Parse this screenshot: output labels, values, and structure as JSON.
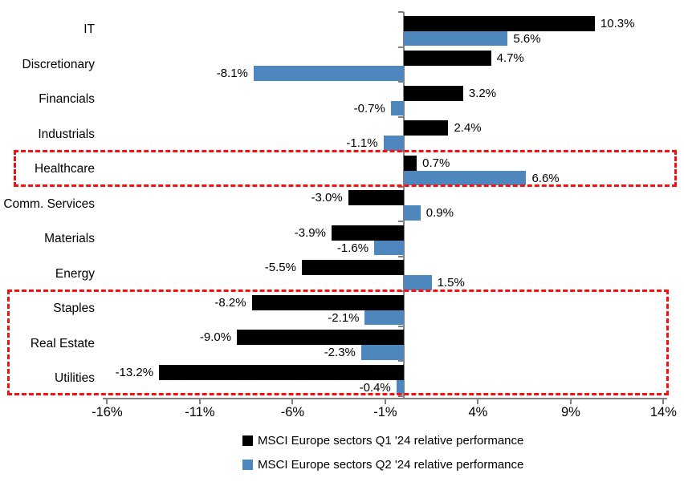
{
  "chart_data": {
    "type": "bar",
    "orientation": "horizontal",
    "title": "",
    "categories": [
      "IT",
      "Discretionary",
      "Financials",
      "Industrials",
      "Healthcare",
      "Comm. Services",
      "Materials",
      "Energy",
      "Staples",
      "Real Estate",
      "Utilities"
    ],
    "series": [
      {
        "name": "MSCI Europe sectors Q1 '24 relative performance",
        "color": "#000000",
        "values": [
          10.3,
          4.7,
          3.2,
          2.4,
          0.7,
          -3.0,
          -3.9,
          -5.5,
          -8.2,
          -9.0,
          -13.2
        ],
        "labels": [
          "10.3%",
          "4.7%",
          "3.2%",
          "2.4%",
          "0.7%",
          "-3.0%",
          "-3.9%",
          "-5.5%",
          "-8.2%",
          "-9.0%",
          "-13.2%"
        ]
      },
      {
        "name": "MSCI Europe sectors Q2 '24 relative performance",
        "color": "#4e86be",
        "values": [
          5.6,
          -8.1,
          -0.7,
          -1.1,
          6.6,
          0.9,
          -1.6,
          1.5,
          -2.1,
          -2.3,
          -0.4
        ],
        "labels": [
          "5.6%",
          "-8.1%",
          "-0.7%",
          "-1.1%",
          "6.6%",
          "0.9%",
          "-1.6%",
          "1.5%",
          "-2.1%",
          "-2.3%",
          "-0.4%"
        ]
      }
    ],
    "x_axis": {
      "min": -16,
      "max": 14,
      "tick_values": [
        -16,
        -11,
        -6,
        -1,
        4,
        9,
        14
      ],
      "tick_labels": [
        "-16%",
        "-11%",
        "-6%",
        "-1%",
        "4%",
        "9%",
        "14%"
      ]
    },
    "grid": "off",
    "axis_color": "#818181",
    "highlight_color": "#fb0d0d",
    "annotations": [
      {
        "type": "dashed-box",
        "name": "healthcare-highlight",
        "categories": [
          "Healthcare"
        ]
      },
      {
        "type": "dashed-box",
        "name": "staples-realestate-utilities-highlight",
        "categories": [
          "Staples",
          "Real Estate",
          "Utilities"
        ]
      }
    ],
    "legend": {
      "position": "bottom",
      "entries": [
        {
          "label": "MSCI Europe sectors Q1 '24 relative performance",
          "color": "#000000"
        },
        {
          "label": "MSCI Europe sectors Q2 '24 relative performance",
          "color": "#4e86be"
        }
      ]
    }
  }
}
